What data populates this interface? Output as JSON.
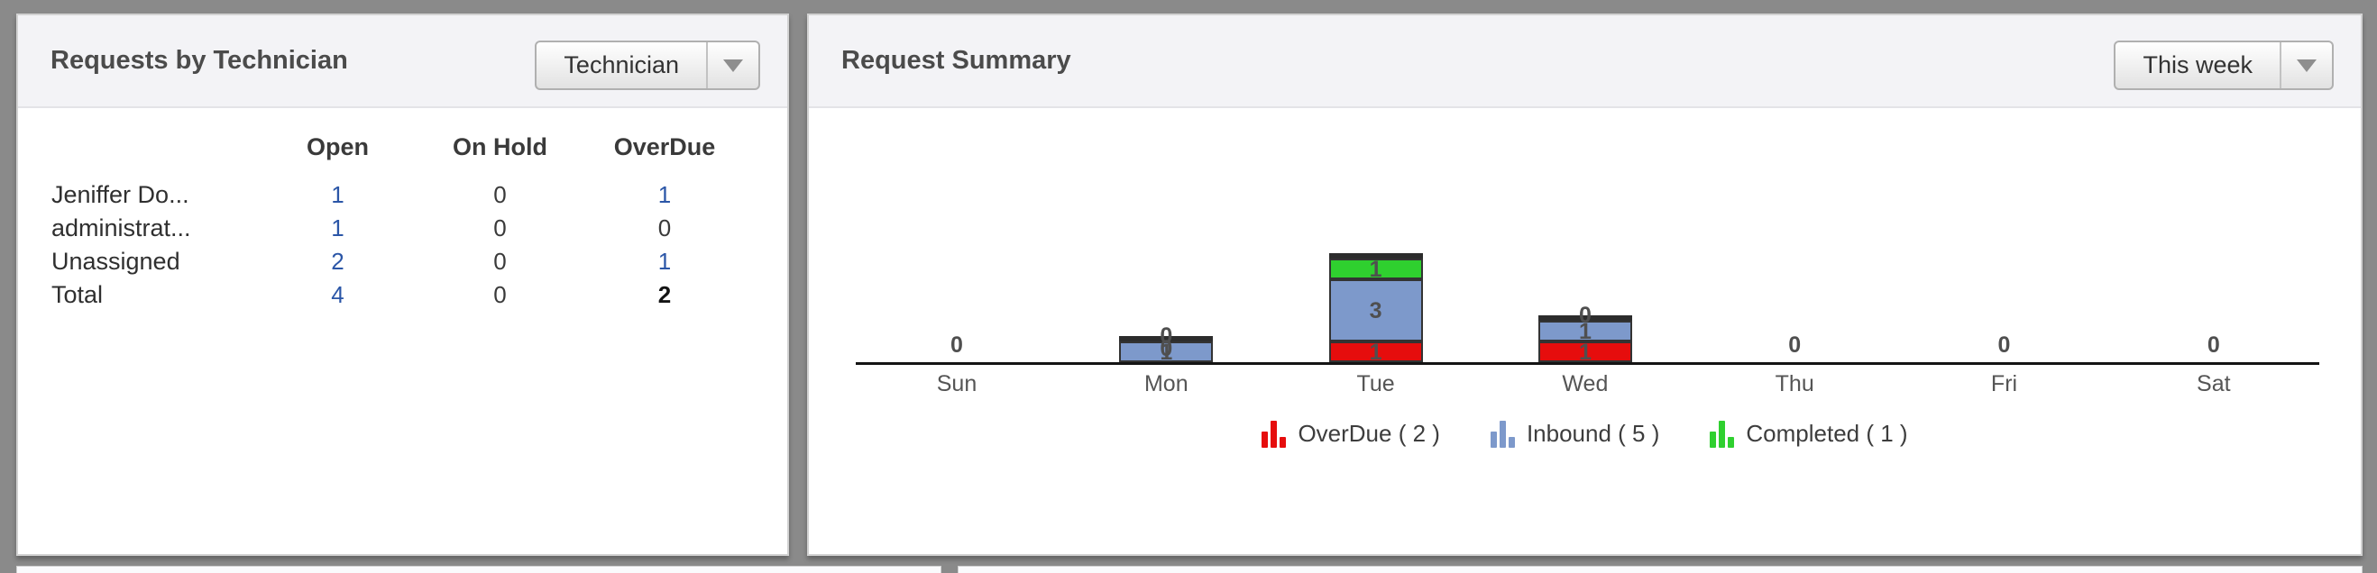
{
  "page": {
    "background": "#8a8a8a"
  },
  "panels": {
    "technician": {
      "title": "Requests by Technician",
      "filter": {
        "value": "Technician"
      },
      "table": {
        "columns": [
          "Open",
          "On Hold",
          "OverDue"
        ],
        "rows": [
          {
            "label": "Jeniffer Do...",
            "cells": [
              {
                "v": "1",
                "s": "link"
              },
              {
                "v": "0",
                "s": "plain"
              },
              {
                "v": "1",
                "s": "link"
              }
            ]
          },
          {
            "label": "administrat...",
            "cells": [
              {
                "v": "1",
                "s": "link"
              },
              {
                "v": "0",
                "s": "plain"
              },
              {
                "v": "0",
                "s": "plain"
              }
            ]
          },
          {
            "label": "Unassigned",
            "cells": [
              {
                "v": "2",
                "s": "link"
              },
              {
                "v": "0",
                "s": "plain"
              },
              {
                "v": "1",
                "s": "link"
              }
            ]
          },
          {
            "label": "Total",
            "cells": [
              {
                "v": "4",
                "s": "link"
              },
              {
                "v": "0",
                "s": "plain"
              },
              {
                "v": "2",
                "s": "strong"
              }
            ]
          }
        ]
      }
    },
    "summary": {
      "title": "Request Summary",
      "filter": {
        "value": "This week"
      }
    }
  },
  "chart_data": {
    "type": "bar",
    "stacked": true,
    "title": "Request Summary",
    "xlabel": "",
    "ylabel": "",
    "grid": false,
    "legend_position": "bottom",
    "categories": [
      "Sun",
      "Mon",
      "Tue",
      "Wed",
      "Thu",
      "Fri",
      "Sat"
    ],
    "series": [
      {
        "name": "OverDue",
        "legend_label": "OverDue ( 2 )",
        "color": "#e60d0d",
        "values": [
          0,
          0,
          1,
          1,
          0,
          0,
          0
        ]
      },
      {
        "name": "Inbound",
        "legend_label": "Inbound ( 5 )",
        "color": "#7d99cb",
        "values": [
          0,
          1,
          3,
          1,
          0,
          0,
          0
        ]
      },
      {
        "name": "Completed",
        "legend_label": "Completed ( 1 )",
        "color": "#2fd02f",
        "values": [
          0,
          0,
          1,
          0,
          0,
          0,
          0
        ]
      }
    ],
    "bar_border_color": "#333333",
    "bar_cap_color": "#2c2c2c",
    "axis_color": "#141414",
    "link_color": "#2b56a7"
  }
}
